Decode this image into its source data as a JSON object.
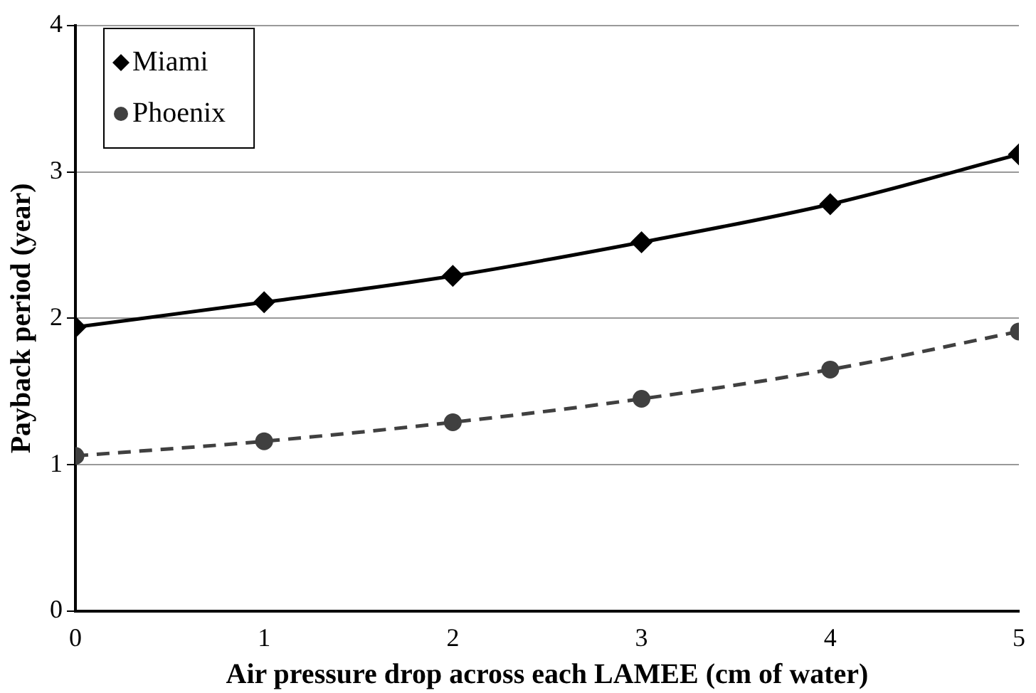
{
  "chart_data": {
    "type": "line",
    "xlabel": "Air pressure drop across each LAMEE (cm of water)",
    "ylabel": "Payback period (year)",
    "x": [
      0,
      1,
      2,
      3,
      4,
      5
    ],
    "xlim": [
      0,
      5
    ],
    "xticks": [
      0,
      1,
      2,
      3,
      4,
      5
    ],
    "ylim": [
      0,
      4
    ],
    "yticks": [
      0,
      1,
      2,
      3,
      4
    ],
    "grid": "y",
    "legend": "top left",
    "series": [
      {
        "name": "Miami",
        "color": "#000000",
        "values": [
          1.94,
          2.11,
          2.29,
          2.52,
          2.78,
          3.12
        ],
        "marker": "diamond",
        "line_style": "solid"
      },
      {
        "name": "Phoenix",
        "color": "#404040",
        "values": [
          1.06,
          1.16,
          1.29,
          1.45,
          1.65,
          1.91
        ],
        "marker": "circle",
        "line_style": "dashed"
      }
    ]
  }
}
